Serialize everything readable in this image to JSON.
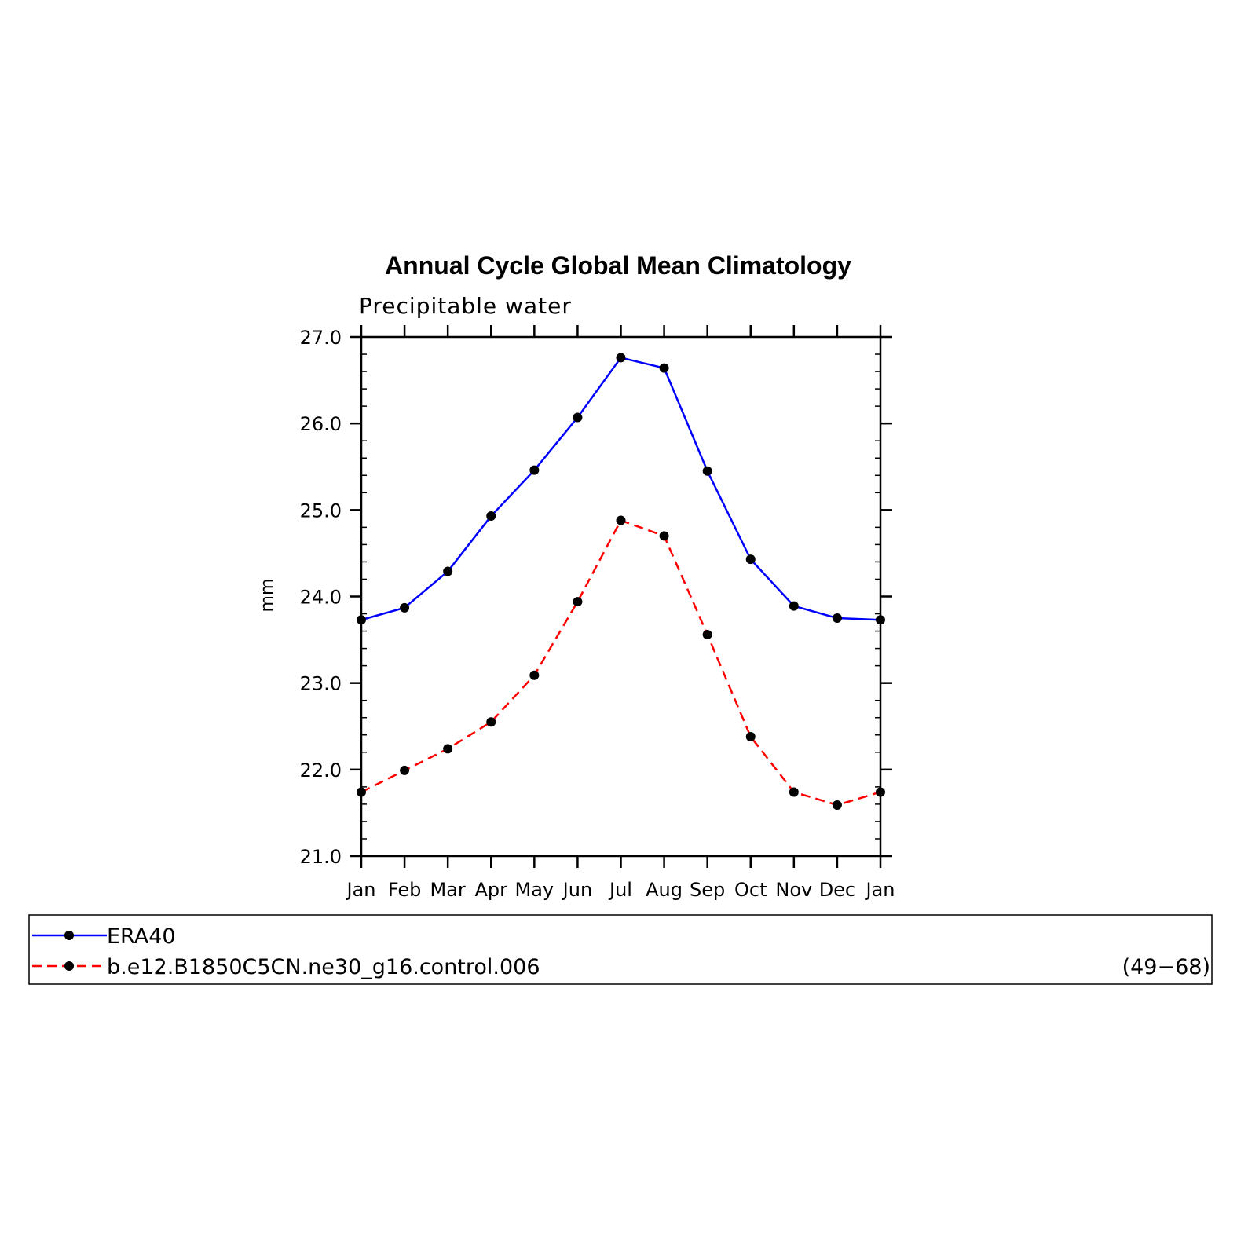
{
  "chart_data": {
    "type": "line",
    "title": "Annual Cycle Global Mean Climatology",
    "subtitle": "Precipitable water",
    "ylabel": "mm",
    "xlabel": "",
    "ylim": [
      21.0,
      27.0
    ],
    "ytick_labels": [
      "21.0",
      "22.0",
      "23.0",
      "24.0",
      "25.0",
      "26.0",
      "27.0"
    ],
    "categories": [
      "Jan",
      "Feb",
      "Mar",
      "Apr",
      "May",
      "Jun",
      "Jul",
      "Aug",
      "Sep",
      "Oct",
      "Nov",
      "Dec",
      "Jan"
    ],
    "series": [
      {
        "name": "ERA40",
        "color": "#0000ff",
        "dash": "solid",
        "values": [
          23.73,
          23.87,
          24.29,
          24.93,
          25.46,
          26.07,
          26.76,
          26.64,
          25.45,
          24.43,
          23.89,
          23.75,
          23.73
        ]
      },
      {
        "name": "b.e12.B1850C5CN.ne30_g16.control.006",
        "color": "#ff0000",
        "dash": "dashed",
        "values": [
          21.74,
          21.99,
          22.24,
          22.55,
          23.09,
          23.94,
          24.88,
          24.7,
          23.56,
          22.38,
          21.74,
          21.59,
          21.74
        ]
      }
    ],
    "legend": {
      "placement": "bottom",
      "note": "(49−68)"
    },
    "grid": false
  }
}
